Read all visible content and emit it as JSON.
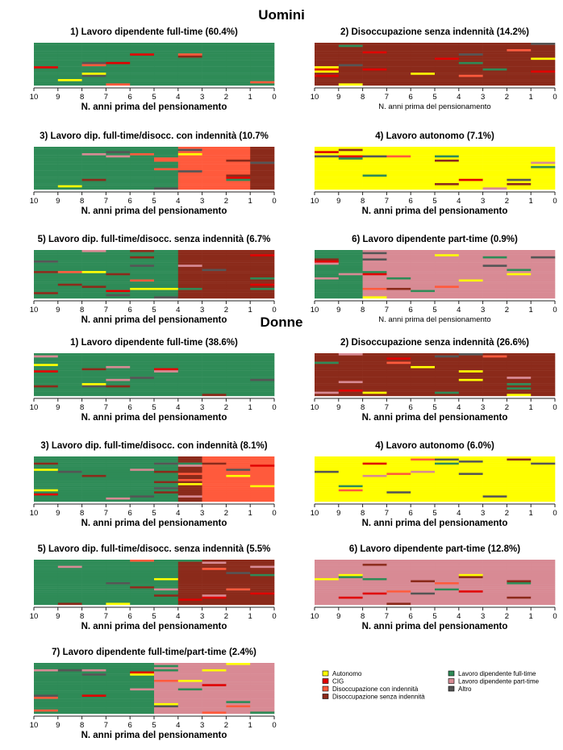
{
  "sections": {
    "men": "Uomini",
    "women": "Donne"
  },
  "xlabel": "N. anni prima del pensionamento",
  "tick_labels": [
    "10",
    "9",
    "8",
    "7",
    "6",
    "5",
    "4",
    "3",
    "2",
    "1",
    "0"
  ],
  "states": {
    "Autonomo": "#FFFF00",
    "CIG": "#E00000",
    "Disoccupazione con indennità": "#FF5A3C",
    "Disoccupazione senza indennità": "#8B2A1A",
    "Lavoro dipendente full-time": "#2E8B57",
    "Lavoro dipendente part-time": "#D88A94",
    "Altro": "#555555"
  },
  "legend": {
    "col1": [
      "Autonomo",
      "CIG",
      "Disoccupazione con indennità",
      "Disoccupazione senza indennità"
    ],
    "col2": [
      "Lavoro dipendente full-time",
      "Lavoro dipendente part-time",
      "Altro"
    ]
  },
  "chart_data": [
    {
      "type": "heatmap",
      "group": "Uomini",
      "title": "1) Lavoro dipendente full-time (60.4%)",
      "xlabel": "N. anni prima del pensionamento",
      "xlim": [
        10,
        0
      ],
      "dominant_by_year": [
        "Lavoro dipendente full-time",
        "Lavoro dipendente full-time",
        "Lavoro dipendente full-time",
        "Lavoro dipendente full-time",
        "Lavoro dipendente full-time",
        "Lavoro dipendente full-time",
        "Lavoro dipendente full-time",
        "Lavoro dipendente full-time",
        "Lavoro dipendente full-time",
        "Lavoro dipendente full-time"
      ]
    },
    {
      "type": "heatmap",
      "group": "Uomini",
      "title": "2) Disoccupazione senza indennità (14.2%)",
      "xlabel": "N. anni prima del pensionamento",
      "xlim": [
        10,
        0
      ],
      "dominant_by_year": [
        "Disoccupazione senza indennità",
        "Disoccupazione senza indennità",
        "Disoccupazione senza indennità",
        "Disoccupazione senza indennità",
        "Disoccupazione senza indennità",
        "Disoccupazione senza indennità",
        "Disoccupazione senza indennità",
        "Disoccupazione senza indennità",
        "Disoccupazione senza indennità",
        "Disoccupazione senza indennità"
      ]
    },
    {
      "type": "heatmap",
      "group": "Uomini",
      "title": "3) Lavoro dip. full-time/disocc. con indennità (10.7%",
      "xlabel": "N. anni prima del pensionamento",
      "xlim": [
        10,
        0
      ],
      "dominant_by_year": [
        "Lavoro dipendente full-time",
        "Lavoro dipendente full-time",
        "Lavoro dipendente full-time",
        "Lavoro dipendente full-time",
        "Lavoro dipendente full-time",
        "Lavoro dipendente full-time",
        "Disoccupazione con indennità",
        "Disoccupazione con indennità",
        "Disoccupazione con indennità",
        "Disoccupazione senza indennità"
      ]
    },
    {
      "type": "heatmap",
      "group": "Uomini",
      "title": "4) Lavoro autonomo (7.1%)",
      "xlabel": "N. anni prima del pensionamento",
      "xlim": [
        10,
        0
      ],
      "dominant_by_year": [
        "Autonomo",
        "Autonomo",
        "Autonomo",
        "Autonomo",
        "Autonomo",
        "Autonomo",
        "Autonomo",
        "Autonomo",
        "Autonomo",
        "Autonomo"
      ]
    },
    {
      "type": "heatmap",
      "group": "Uomini",
      "title": "5) Lavoro dip. full-time/disocc. senza indennità (6.7%",
      "xlabel": "N. anni prima del pensionamento",
      "xlim": [
        10,
        0
      ],
      "dominant_by_year": [
        "Lavoro dipendente full-time",
        "Lavoro dipendente full-time",
        "Lavoro dipendente full-time",
        "Lavoro dipendente full-time",
        "Lavoro dipendente full-time",
        "Lavoro dipendente full-time",
        "Disoccupazione senza indennità",
        "Disoccupazione senza indennità",
        "Disoccupazione senza indennità",
        "Disoccupazione senza indennità"
      ]
    },
    {
      "type": "heatmap",
      "group": "Uomini",
      "title": "6) Lavoro dipendente part-time (0.9%)",
      "xlabel": "N. anni prima del pensionamento",
      "xlim": [
        10,
        0
      ],
      "dominant_by_year": [
        "Lavoro dipendente full-time",
        "Lavoro dipendente full-time",
        "Lavoro dipendente part-time",
        "Lavoro dipendente part-time",
        "Lavoro dipendente part-time",
        "Lavoro dipendente part-time",
        "Lavoro dipendente part-time",
        "Lavoro dipendente part-time",
        "Lavoro dipendente part-time",
        "Lavoro dipendente part-time"
      ]
    },
    {
      "type": "heatmap",
      "group": "Donne",
      "title": "1) Lavoro dipendente full-time (38.6%)",
      "xlabel": "N. anni prima del pensionamento",
      "xlim": [
        10,
        0
      ],
      "dominant_by_year": [
        "Lavoro dipendente full-time",
        "Lavoro dipendente full-time",
        "Lavoro dipendente full-time",
        "Lavoro dipendente full-time",
        "Lavoro dipendente full-time",
        "Lavoro dipendente full-time",
        "Lavoro dipendente full-time",
        "Lavoro dipendente full-time",
        "Lavoro dipendente full-time",
        "Lavoro dipendente full-time"
      ]
    },
    {
      "type": "heatmap",
      "group": "Donne",
      "title": "2) Disoccupazione senza indennità (26.6%)",
      "xlabel": "N. anni prima del pensionamento",
      "xlim": [
        10,
        0
      ],
      "dominant_by_year": [
        "Disoccupazione senza indennità",
        "Disoccupazione senza indennità",
        "Disoccupazione senza indennità",
        "Disoccupazione senza indennità",
        "Disoccupazione senza indennità",
        "Disoccupazione senza indennità",
        "Disoccupazione senza indennità",
        "Disoccupazione senza indennità",
        "Disoccupazione senza indennità",
        "Disoccupazione senza indennità"
      ]
    },
    {
      "type": "heatmap",
      "group": "Donne",
      "title": "3) Lavoro dip. full-time/disocc. con indennità (8.1%)",
      "xlabel": "N. anni prima del pensionamento",
      "xlim": [
        10,
        0
      ],
      "dominant_by_year": [
        "Lavoro dipendente full-time",
        "Lavoro dipendente full-time",
        "Lavoro dipendente full-time",
        "Lavoro dipendente full-time",
        "Lavoro dipendente full-time",
        "Lavoro dipendente full-time",
        "Disoccupazione senza indennità",
        "Disoccupazione con indennità",
        "Disoccupazione con indennità",
        "Disoccupazione con indennità"
      ]
    },
    {
      "type": "heatmap",
      "group": "Donne",
      "title": "4) Lavoro autonomo (6.0%)",
      "xlabel": "N. anni prima del pensionamento",
      "xlim": [
        10,
        0
      ],
      "dominant_by_year": [
        "Autonomo",
        "Autonomo",
        "Autonomo",
        "Autonomo",
        "Autonomo",
        "Autonomo",
        "Autonomo",
        "Autonomo",
        "Autonomo",
        "Autonomo"
      ]
    },
    {
      "type": "heatmap",
      "group": "Donne",
      "title": "5) Lavoro dip. full-time/disocc. senza indennità (5.5%",
      "xlabel": "N. anni prima del pensionamento",
      "xlim": [
        10,
        0
      ],
      "dominant_by_year": [
        "Lavoro dipendente full-time",
        "Lavoro dipendente full-time",
        "Lavoro dipendente full-time",
        "Lavoro dipendente full-time",
        "Lavoro dipendente full-time",
        "Lavoro dipendente full-time",
        "Disoccupazione senza indennità",
        "Disoccupazione senza indennità",
        "Disoccupazione senza indennità",
        "Disoccupazione senza indennità"
      ]
    },
    {
      "type": "heatmap",
      "group": "Donne",
      "title": "6) Lavoro dipendente part-time (12.8%)",
      "xlabel": "N. anni prima del pensionamento",
      "xlim": [
        10,
        0
      ],
      "dominant_by_year": [
        "Lavoro dipendente part-time",
        "Lavoro dipendente part-time",
        "Lavoro dipendente part-time",
        "Lavoro dipendente part-time",
        "Lavoro dipendente part-time",
        "Lavoro dipendente part-time",
        "Lavoro dipendente part-time",
        "Lavoro dipendente part-time",
        "Lavoro dipendente part-time",
        "Lavoro dipendente part-time"
      ]
    },
    {
      "type": "heatmap",
      "group": "Donne",
      "title": "7) Lavoro dipendente full-time/part-time (2.4%)",
      "xlabel": "N. anni prima del pensionamento",
      "xlim": [
        10,
        0
      ],
      "dominant_by_year": [
        "Lavoro dipendente full-time",
        "Lavoro dipendente full-time",
        "Lavoro dipendente full-time",
        "Lavoro dipendente full-time",
        "Lavoro dipendente full-time",
        "Lavoro dipendente part-time",
        "Lavoro dipendente part-time",
        "Lavoro dipendente part-time",
        "Lavoro dipendente part-time",
        "Lavoro dipendente part-time"
      ]
    }
  ]
}
